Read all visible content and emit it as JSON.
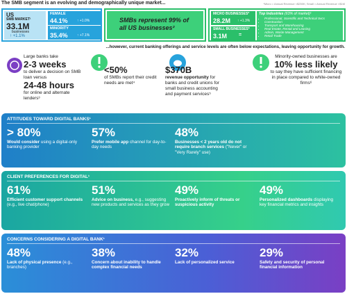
{
  "header": {
    "title": "The SMB segment is an evolving and demographically unique market...",
    "footnote": "*Micro = Annual Revenue <$250K; Small = Annual Revenue <$1M"
  },
  "us_market": {
    "label": "US",
    "label2": "SMB MARKET¹",
    "value": "33.1M",
    "unit": "businesses",
    "change": "+1.1%",
    "female": {
      "label": "FEMALE",
      "value": "44.1%",
      "change": "+1.0%"
    },
    "minority": {
      "label": "MINORITY",
      "value": "35.4%",
      "change": "+7.1%"
    }
  },
  "share": {
    "text": "SMBs represent 99% of all US businesses²"
  },
  "segments": [
    {
      "label": "MICRO BUSINESSES*",
      "value": "28.2M",
      "change": "+1.3%"
    },
    {
      "label": "SMALL BUSINESSES*",
      "value": "3.1M",
      "change": "="
    }
  ],
  "industries": {
    "title": "Top Industries",
    "subtitle": "(63% of market)¹",
    "items": [
      "Professional, Scientific and Technical Svcs",
      "Construction",
      "Transport and Warehousing",
      "Real Estate, Rental and Leasing",
      "Admin, Waste Management",
      "Retail Trade"
    ]
  },
  "subheading": "...however, current banking offerings and service levels are often below expectations, leaving opportunity for growth.",
  "stats": [
    {
      "pre": "Large banks take",
      "value": "2-3 weeks",
      "mid": "to deliver a decision on SMB loan versus",
      "value2": "24-48 hours",
      "post": "for online and alternate lenders³"
    },
    {
      "value": "<50%",
      "post": "of SMBs report their credit needs are met⁴"
    },
    {
      "value": "$370B",
      "bold": "revenue opportunity",
      "post": "for banks and credit unions for small business accounting and payment services⁵"
    },
    {
      "pre": "Minority-owned businesses are",
      "value": "10% less likely",
      "post": "to say they have sufficient financing in place compared to white-owned firms⁶"
    }
  ],
  "sections": [
    {
      "title": "ATTITUDES TOWARD DIGITAL BANKS¹",
      "items": [
        {
          "value": "> 80%",
          "bold": "Would consider",
          "text": "using a digital-only banking provider"
        },
        {
          "value": "57%",
          "bold": "Prefer mobile app",
          "text": "channel for day-to-day needs"
        },
        {
          "value": "48%",
          "bold": "Businesses < 2 years old do not require branch services",
          "text": "(\"Never\" or \"Very Rarely\" use)"
        }
      ]
    },
    {
      "title": "CLIENT PREFERENCES FOR DIGITAL¹",
      "items": [
        {
          "value": "61%",
          "bold": "Efficient customer support channels",
          "text": "(e.g., live chat/phone)"
        },
        {
          "value": "51%",
          "bold": "Advice on business,",
          "text": "e.g., suggesting new products and services as they grow"
        },
        {
          "value": "49%",
          "bold": "Proactively inform of threats or suspicious activity",
          "text": ""
        },
        {
          "value": "49%",
          "bold": "Personalized dashboards",
          "text": "displaying key financial metrics and insights"
        }
      ]
    },
    {
      "title": "CONCERNS CONSIDERING A DIGITAL BANK¹",
      "items": [
        {
          "value": "48%",
          "bold": "Lack of physical presence",
          "text": "(e.g., branches)"
        },
        {
          "value": "38%",
          "bold": "Concern about inability to handle complex financial needs",
          "text": ""
        },
        {
          "value": "32%",
          "bold": "Lack of personalized service",
          "text": ""
        },
        {
          "value": "29%",
          "bold": "Safety and security of personal financial information",
          "text": ""
        }
      ]
    }
  ]
}
